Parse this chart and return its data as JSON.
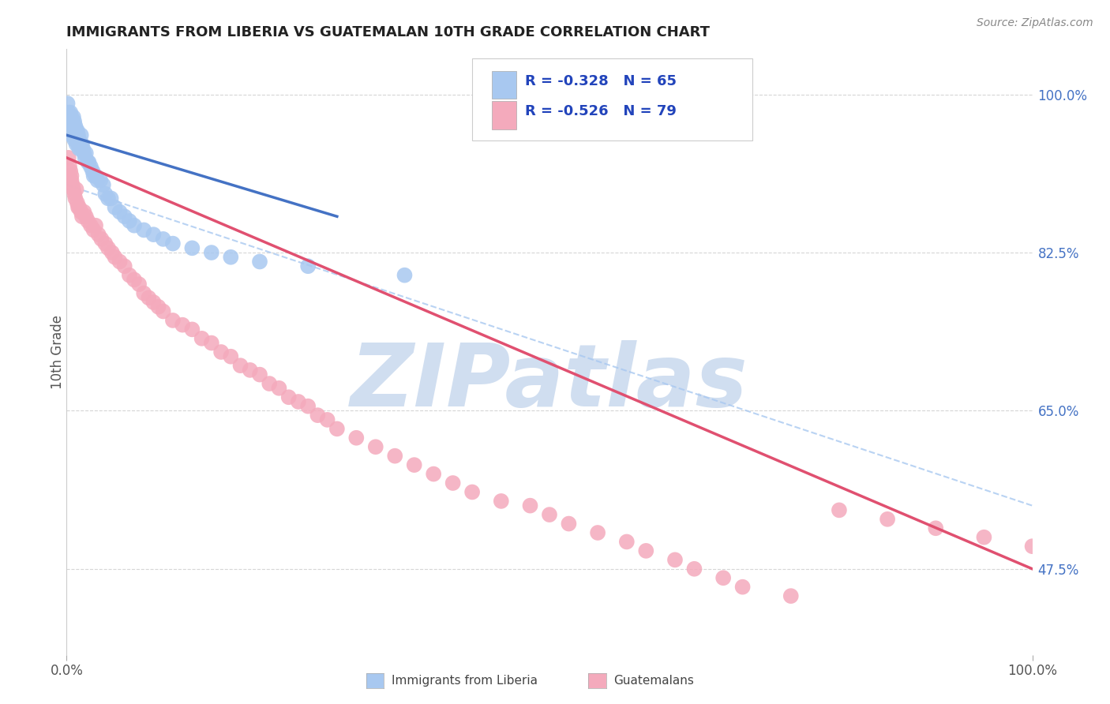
{
  "title": "IMMIGRANTS FROM LIBERIA VS GUATEMALAN 10TH GRADE CORRELATION CHART",
  "source_text": "Source: ZipAtlas.com",
  "ylabel": "10th Grade",
  "xlim": [
    0.0,
    1.0
  ],
  "ylim": [
    0.38,
    1.05
  ],
  "yticks": [
    0.475,
    0.65,
    0.825,
    1.0
  ],
  "ytick_labels": [
    "47.5%",
    "65.0%",
    "82.5%",
    "100.0%"
  ],
  "legend_R": [
    -0.328,
    -0.526
  ],
  "legend_N": [
    65,
    79
  ],
  "blue_color": "#A8C8F0",
  "pink_color": "#F4AABC",
  "blue_line_color": "#4472C4",
  "pink_line_color": "#E05070",
  "dash_color": "#A8C8F0",
  "watermark": "ZIPatlas",
  "watermark_color": "#D0DEF0",
  "background_color": "#FFFFFF",
  "legend_labels": [
    "Immigrants from Liberia",
    "Guatemalans"
  ],
  "blue_scatter_x": [
    0.001,
    0.002,
    0.002,
    0.003,
    0.003,
    0.004,
    0.004,
    0.004,
    0.005,
    0.005,
    0.005,
    0.006,
    0.006,
    0.007,
    0.007,
    0.007,
    0.008,
    0.008,
    0.008,
    0.009,
    0.009,
    0.01,
    0.01,
    0.01,
    0.011,
    0.011,
    0.012,
    0.012,
    0.013,
    0.013,
    0.014,
    0.015,
    0.015,
    0.016,
    0.017,
    0.018,
    0.019,
    0.02,
    0.022,
    0.023,
    0.025,
    0.027,
    0.028,
    0.03,
    0.032,
    0.035,
    0.038,
    0.04,
    0.043,
    0.046,
    0.05,
    0.055,
    0.06,
    0.065,
    0.07,
    0.08,
    0.09,
    0.1,
    0.11,
    0.13,
    0.15,
    0.17,
    0.2,
    0.25,
    0.35
  ],
  "blue_scatter_y": [
    0.99,
    0.98,
    0.975,
    0.97,
    0.965,
    0.98,
    0.97,
    0.96,
    0.975,
    0.965,
    0.955,
    0.97,
    0.96,
    0.975,
    0.965,
    0.955,
    0.97,
    0.96,
    0.95,
    0.965,
    0.955,
    0.96,
    0.955,
    0.945,
    0.96,
    0.95,
    0.955,
    0.945,
    0.95,
    0.94,
    0.945,
    0.955,
    0.94,
    0.945,
    0.94,
    0.935,
    0.93,
    0.935,
    0.925,
    0.925,
    0.92,
    0.915,
    0.91,
    0.91,
    0.905,
    0.905,
    0.9,
    0.89,
    0.885,
    0.885,
    0.875,
    0.87,
    0.865,
    0.86,
    0.855,
    0.85,
    0.845,
    0.84,
    0.835,
    0.83,
    0.825,
    0.82,
    0.815,
    0.81,
    0.8
  ],
  "pink_scatter_x": [
    0.002,
    0.003,
    0.004,
    0.005,
    0.005,
    0.006,
    0.007,
    0.008,
    0.009,
    0.01,
    0.011,
    0.012,
    0.013,
    0.015,
    0.016,
    0.018,
    0.02,
    0.022,
    0.025,
    0.028,
    0.03,
    0.033,
    0.036,
    0.04,
    0.043,
    0.047,
    0.05,
    0.055,
    0.06,
    0.065,
    0.07,
    0.075,
    0.08,
    0.085,
    0.09,
    0.095,
    0.1,
    0.11,
    0.12,
    0.13,
    0.14,
    0.15,
    0.16,
    0.17,
    0.18,
    0.19,
    0.2,
    0.21,
    0.22,
    0.23,
    0.24,
    0.25,
    0.26,
    0.27,
    0.28,
    0.3,
    0.32,
    0.34,
    0.36,
    0.38,
    0.4,
    0.42,
    0.45,
    0.48,
    0.5,
    0.52,
    0.55,
    0.58,
    0.6,
    0.63,
    0.65,
    0.68,
    0.7,
    0.75,
    0.8,
    0.85,
    0.9,
    0.95,
    1.0
  ],
  "pink_scatter_y": [
    0.93,
    0.92,
    0.915,
    0.91,
    0.905,
    0.9,
    0.895,
    0.89,
    0.885,
    0.895,
    0.88,
    0.875,
    0.875,
    0.87,
    0.865,
    0.87,
    0.865,
    0.86,
    0.855,
    0.85,
    0.855,
    0.845,
    0.84,
    0.835,
    0.83,
    0.825,
    0.82,
    0.815,
    0.81,
    0.8,
    0.795,
    0.79,
    0.78,
    0.775,
    0.77,
    0.765,
    0.76,
    0.75,
    0.745,
    0.74,
    0.73,
    0.725,
    0.715,
    0.71,
    0.7,
    0.695,
    0.69,
    0.68,
    0.675,
    0.665,
    0.66,
    0.655,
    0.645,
    0.64,
    0.63,
    0.62,
    0.61,
    0.6,
    0.59,
    0.58,
    0.57,
    0.56,
    0.55,
    0.545,
    0.535,
    0.525,
    0.515,
    0.505,
    0.495,
    0.485,
    0.475,
    0.465,
    0.455,
    0.445,
    0.54,
    0.53,
    0.52,
    0.51,
    0.5
  ],
  "blue_line_x0": 0.0,
  "blue_line_y0": 0.955,
  "blue_line_x1": 0.28,
  "blue_line_y1": 0.865,
  "pink_line_x0": 0.0,
  "pink_line_y0": 0.93,
  "pink_line_x1": 1.0,
  "pink_line_y1": 0.475,
  "dash_line_x0": 0.0,
  "dash_line_y0": 0.9,
  "dash_line_x1": 1.0,
  "dash_line_y1": 0.545
}
